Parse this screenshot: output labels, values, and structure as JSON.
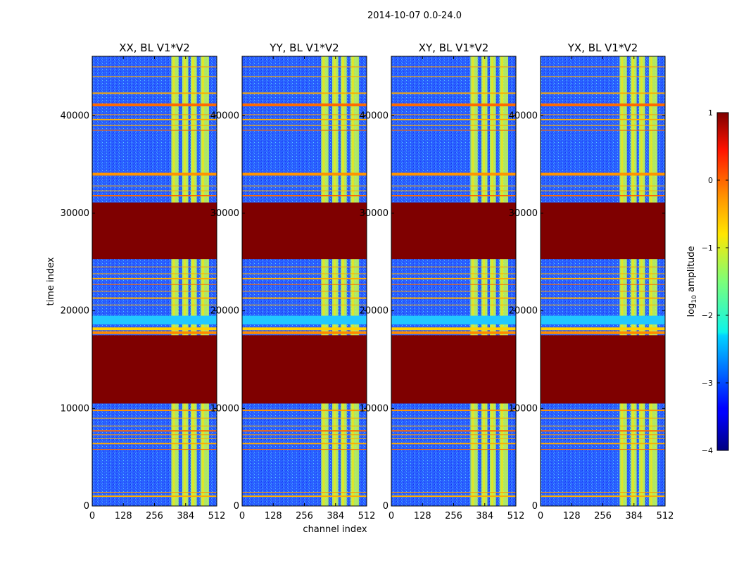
{
  "figure": {
    "suptitle": "2014-10-07 0.0-24.0"
  },
  "chart_data": [
    {
      "type": "heatmap",
      "title": "XX, BL V1*V2",
      "xlabel": "",
      "ylabel": "time index",
      "xlim": [
        0,
        512
      ],
      "ylim": [
        0,
        46080
      ],
      "xticks": [
        "0",
        "128",
        "256",
        "384",
        "512"
      ],
      "yticks": [
        "0",
        "10000",
        "20000",
        "30000",
        "40000"
      ],
      "flagged_time_ranges": [
        [
          10500,
          17500
        ],
        [
          25300,
          31100
        ]
      ],
      "bright_channel_ranges": [
        [
          325,
          355
        ],
        [
          370,
          395
        ],
        [
          405,
          430
        ],
        [
          445,
          480
        ]
      ]
    },
    {
      "type": "heatmap",
      "title": "YY, BL V1*V2",
      "xlabel": "channel index",
      "ylabel": "",
      "xlim": [
        0,
        512
      ],
      "ylim": [
        0,
        46080
      ],
      "xticks": [
        "0",
        "128",
        "256",
        "384",
        "512"
      ],
      "yticks": [
        "0",
        "10000",
        "20000",
        "30000",
        "40000"
      ],
      "flagged_time_ranges": [
        [
          10500,
          17500
        ],
        [
          25300,
          31100
        ]
      ],
      "bright_channel_ranges": [
        [
          325,
          355
        ],
        [
          370,
          395
        ],
        [
          405,
          430
        ],
        [
          445,
          480
        ]
      ]
    },
    {
      "type": "heatmap",
      "title": "XY, BL V1*V2",
      "xlabel": "",
      "ylabel": "",
      "xlim": [
        0,
        512
      ],
      "ylim": [
        0,
        46080
      ],
      "xticks": [
        "0",
        "128",
        "256",
        "384",
        "512"
      ],
      "yticks": [
        "0",
        "10000",
        "20000",
        "30000",
        "40000"
      ],
      "flagged_time_ranges": [
        [
          10500,
          17500
        ],
        [
          25300,
          31100
        ]
      ],
      "bright_channel_ranges": [
        [
          325,
          355
        ],
        [
          370,
          395
        ],
        [
          405,
          430
        ],
        [
          445,
          480
        ]
      ]
    },
    {
      "type": "heatmap",
      "title": "YX, BL V1*V2",
      "xlabel": "",
      "ylabel": "",
      "xlim": [
        0,
        512
      ],
      "ylim": [
        0,
        46080
      ],
      "xticks": [
        "0",
        "128",
        "256",
        "384",
        "512"
      ],
      "yticks": [
        "0",
        "10000",
        "20000",
        "30000",
        "40000"
      ],
      "flagged_time_ranges": [
        [
          10500,
          17500
        ],
        [
          25300,
          31100
        ]
      ],
      "bright_channel_ranges": [
        [
          325,
          355
        ],
        [
          370,
          395
        ],
        [
          405,
          430
        ],
        [
          445,
          480
        ]
      ]
    }
  ],
  "colorbar": {
    "label_prefix": "log",
    "label_sub": "10",
    "label_suffix": " amplitude",
    "range": [
      -4,
      1
    ],
    "ticks": [
      "1",
      "0",
      "−1",
      "−2",
      "−3",
      "−4"
    ],
    "colormap": "jet"
  }
}
